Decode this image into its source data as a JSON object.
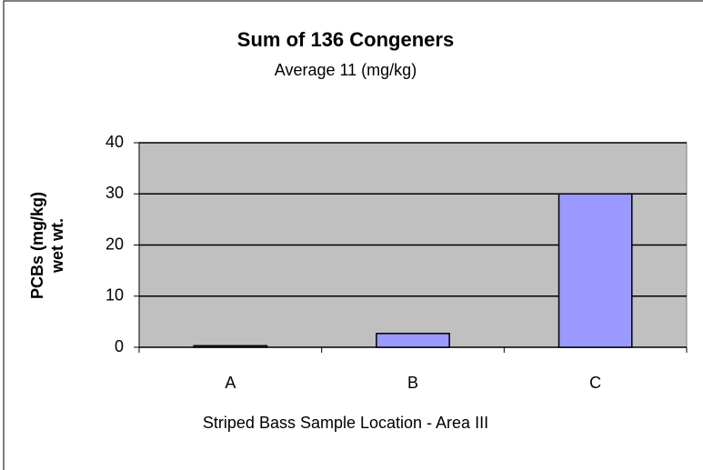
{
  "chart_data": {
    "type": "bar",
    "title": "Sum of 136 Congeners",
    "subtitle": "Average 11 (mg/kg)",
    "y_label": [
      "PCBs (mg/kg)",
      "wet wt."
    ],
    "x_label": "Striped Bass Sample Location - Area III",
    "categories": [
      "A",
      "B",
      "C"
    ],
    "values": [
      0.3,
      2.7,
      30
    ],
    "color": "#9999ff",
    "ylim": [
      0,
      40
    ],
    "yticks": [
      0,
      10,
      20,
      30,
      40
    ],
    "grid": true
  }
}
